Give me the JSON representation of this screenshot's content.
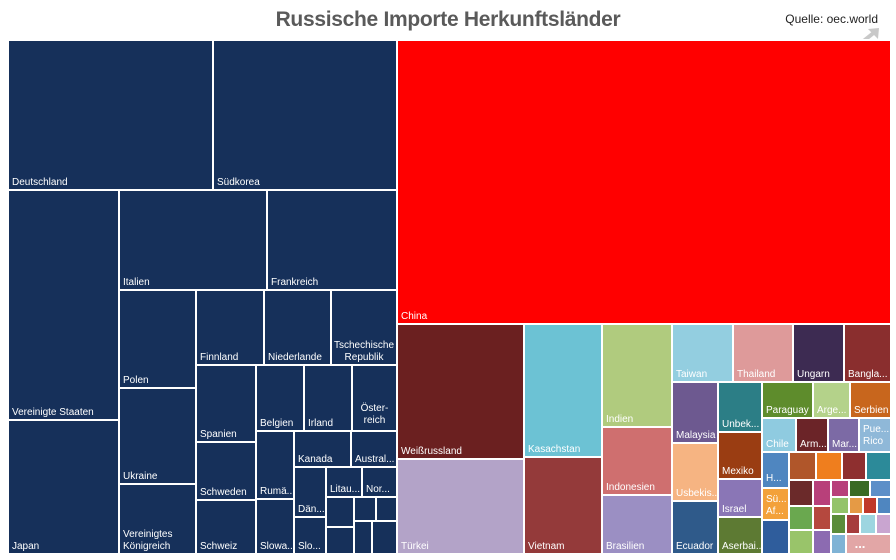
{
  "title": "Russische Importe Herkunftsländer",
  "source": "Quelle: oec.world",
  "icons": {
    "expand": "expand-icon"
  },
  "chart_data": {
    "type": "treemap",
    "title": "Russische Importe Herkunftsländer",
    "more_label": "...",
    "tiles": [
      {
        "label": "Deutschland",
        "color": "#16305a"
      },
      {
        "label": "Südkorea",
        "color": "#16305a"
      },
      {
        "label": "Vereinigte Staaten",
        "color": "#16305a"
      },
      {
        "label": "Japan",
        "color": "#16305a"
      },
      {
        "label": "Italien",
        "color": "#16305a"
      },
      {
        "label": "Frankreich",
        "color": "#16305a"
      },
      {
        "label": "Polen",
        "color": "#16305a"
      },
      {
        "label": "Ukraine",
        "color": "#16305a"
      },
      {
        "label": "Vereinigtes Königreich",
        "color": "#16305a"
      },
      {
        "label": "Finnland",
        "color": "#16305a"
      },
      {
        "label": "Niederlande",
        "color": "#16305a"
      },
      {
        "label": "Tschechische Republik",
        "color": "#16305a"
      },
      {
        "label": "Spanien",
        "color": "#16305a"
      },
      {
        "label": "Belgien",
        "color": "#16305a"
      },
      {
        "label": "Irland",
        "color": "#16305a"
      },
      {
        "label": "Österreich",
        "color": "#16305a"
      },
      {
        "label": "Schweden",
        "color": "#16305a"
      },
      {
        "label": "Schweiz",
        "color": "#16305a"
      },
      {
        "label": "Rumä...",
        "color": "#16305a"
      },
      {
        "label": "Slowa...",
        "color": "#16305a"
      },
      {
        "label": "Kanada",
        "color": "#16305a"
      },
      {
        "label": "Austral...",
        "color": "#16305a"
      },
      {
        "label": "Dän...",
        "color": "#16305a"
      },
      {
        "label": "Litau...",
        "color": "#16305a"
      },
      {
        "label": "Nor...",
        "color": "#16305a"
      },
      {
        "label": "Slo...",
        "color": "#16305a"
      },
      {
        "label": "",
        "color": "#16305a"
      },
      {
        "label": "",
        "color": "#16305a"
      },
      {
        "label": "",
        "color": "#16305a"
      },
      {
        "label": "",
        "color": "#16305a"
      },
      {
        "label": "",
        "color": "#16305a"
      },
      {
        "label": "",
        "color": "#16305a"
      },
      {
        "label": "China",
        "color": "#ff0000"
      },
      {
        "label": "Weißrussland",
        "color": "#6b2020"
      },
      {
        "label": "Türkei",
        "color": "#b3a3c8"
      },
      {
        "label": "Kasachstan",
        "color": "#6cc2d4"
      },
      {
        "label": "Vietnam",
        "color": "#943a3a"
      },
      {
        "label": "Indien",
        "color": "#b0cb7e"
      },
      {
        "label": "Indonesien",
        "color": "#cf6f6f"
      },
      {
        "label": "Brasilien",
        "color": "#9b8fc3"
      },
      {
        "label": "Taiwan",
        "color": "#93cee0"
      },
      {
        "label": "Thailand",
        "color": "#de9a9a"
      },
      {
        "label": "Ungarn",
        "color": "#3d2b52"
      },
      {
        "label": "Bangla...",
        "color": "#8a2e2e"
      },
      {
        "label": "Malaysia",
        "color": "#6d5990"
      },
      {
        "label": "Usbekis...",
        "color": "#f6b482"
      },
      {
        "label": "Ecuador",
        "color": "#2f5a8a"
      },
      {
        "label": "Unbek...",
        "color": "#2c7e86"
      },
      {
        "label": "Mexiko",
        "color": "#9a3d12"
      },
      {
        "label": "Israel",
        "color": "#8a76b6"
      },
      {
        "label": "Aserbai...",
        "color": "#5d7a33"
      },
      {
        "label": "Paraguay",
        "color": "#5e8c2c"
      },
      {
        "label": "Arge...",
        "color": "#b4d28a"
      },
      {
        "label": "Serbien",
        "color": "#c8661d"
      },
      {
        "label": "Chile",
        "color": "#8fcbe0"
      },
      {
        "label": "Arm...",
        "color": "#6b2428"
      },
      {
        "label": "Mar...",
        "color": "#7c6aa5"
      },
      {
        "label": "Pue... Rico",
        "color": "#8fb8d8"
      },
      {
        "label": "H...",
        "color": "#4f86c0"
      },
      {
        "label": "Sü... Af...",
        "color": "#f3a13a"
      },
      {
        "label": "",
        "color": "#b0562a"
      },
      {
        "label": "",
        "color": "#ef7e1e"
      },
      {
        "label": "",
        "color": "#8e2f2f"
      },
      {
        "label": "",
        "color": "#2c8a99"
      },
      {
        "label": "",
        "color": "#2f5d9c"
      },
      {
        "label": "",
        "color": "#6b2a2a"
      },
      {
        "label": "",
        "color": "#b8407a"
      },
      {
        "label": "",
        "color": "#b8407a"
      },
      {
        "label": "",
        "color": "#3a6a24"
      },
      {
        "label": "",
        "color": "#5d8fc8"
      },
      {
        "label": "",
        "color": "#6aa84f"
      },
      {
        "label": "",
        "color": "#b5483e"
      },
      {
        "label": "",
        "color": "#94c36a"
      },
      {
        "label": "",
        "color": "#e59a45"
      },
      {
        "label": "",
        "color": "#c0392b"
      },
      {
        "label": "",
        "color": "#4f86c0"
      },
      {
        "label": "",
        "color": "#99c46a"
      },
      {
        "label": "",
        "color": "#8c6bb1"
      },
      {
        "label": "",
        "color": "#5b8c3a"
      },
      {
        "label": "",
        "color": "#7fb3d5"
      },
      {
        "label": "",
        "color": "#a63c3c"
      },
      {
        "label": "",
        "color": "#9dd5e0"
      },
      {
        "label": "",
        "color": "#c9a5d0"
      },
      {
        "label": "",
        "color": "#e2a6a6"
      }
    ]
  }
}
